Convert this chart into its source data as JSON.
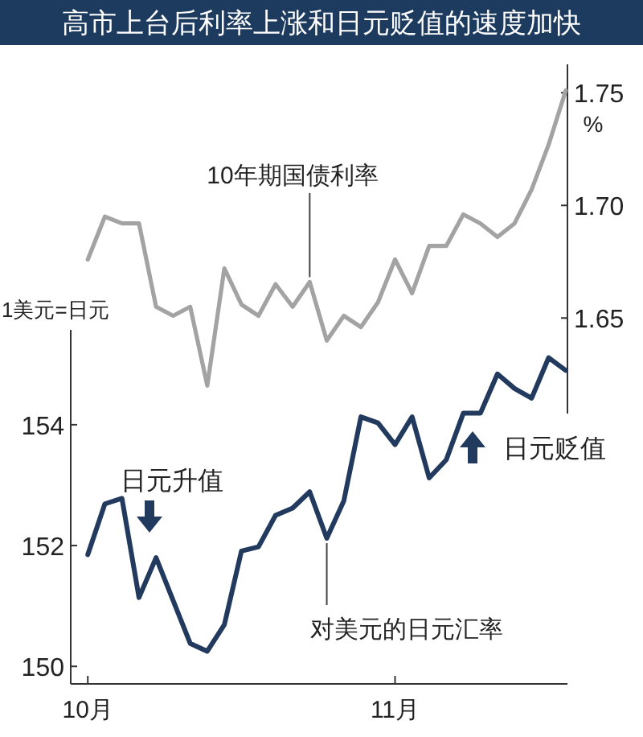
{
  "chart_data": [
    {
      "type": "line",
      "title": "高市上台后利率上涨和日元贬值的速度加快",
      "categories": [
        null,
        null,
        null,
        null,
        null,
        null,
        null,
        null,
        null,
        null,
        null,
        null,
        null,
        null,
        null,
        null,
        null,
        null,
        null,
        null,
        null,
        null,
        null,
        null,
        null,
        null,
        null,
        null,
        null
      ],
      "tick_labels": "y",
      "ylim": [
        1.6076,
        1.7626
      ],
      "yticks": [
        {
          "value": 1.65,
          "label": "1.65"
        },
        {
          "value": 1.7,
          "label": "1.70"
        },
        {
          "value": 1.75,
          "label": "1.75"
        }
      ],
      "series": [
        {
          "name": "10年期国债利率",
          "color": "#a3a3a3",
          "values": [
            1.676,
            1.695,
            1.692,
            1.692,
            1.655,
            1.651,
            1.655,
            1.62,
            1.672,
            1.656,
            1.651,
            1.665,
            1.655,
            1.666,
            1.64,
            1.651,
            1.646,
            1.657,
            1.676,
            1.661,
            1.682,
            1.682,
            1.696,
            1.692,
            1.686,
            1.692,
            1.707,
            1.727,
            1.751
          ]
        }
      ],
      "annotations": [
        "%"
      ]
    },
    {
      "type": "line",
      "categories": [
        "10月",
        null,
        null,
        null,
        null,
        null,
        null,
        null,
        null,
        null,
        null,
        null,
        null,
        null,
        null,
        null,
        null,
        null,
        "11月",
        null,
        null,
        null,
        null,
        null,
        null,
        null,
        null,
        null,
        null
      ],
      "ylabel": "1美元=日元",
      "ylim": [
        149.71,
        155.57
      ],
      "yticks": [
        150,
        152,
        154
      ],
      "series": [
        {
          "name": "对美元的日元汇率",
          "color": "#223a5e",
          "values": [
            151.85,
            152.69,
            152.78,
            151.14,
            151.8,
            151.09,
            150.38,
            150.25,
            150.69,
            151.91,
            151.98,
            152.5,
            152.62,
            152.89,
            152.12,
            152.74,
            154.13,
            154.03,
            153.67,
            154.13,
            153.12,
            153.42,
            154.19,
            154.19,
            154.84,
            154.6,
            154.44,
            155.11,
            154.9
          ]
        }
      ],
      "annotations": [
        "日元升值",
        "日元贬值"
      ]
    }
  ]
}
